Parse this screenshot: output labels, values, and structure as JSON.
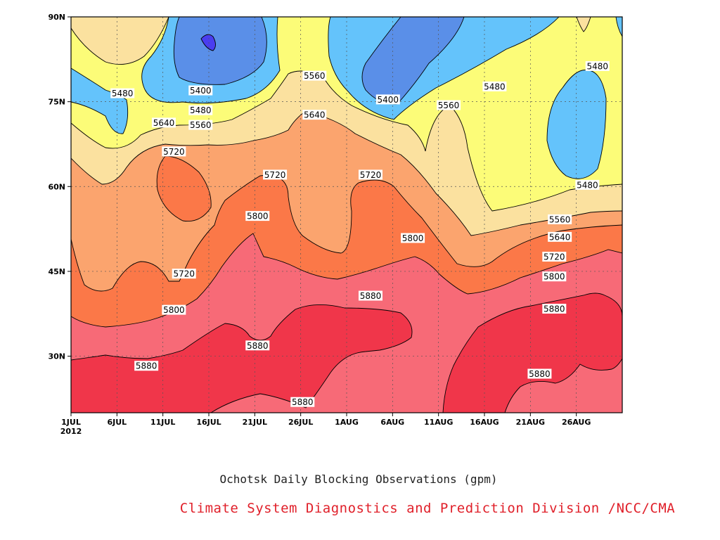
{
  "chart_data": {
    "type": "heatmap",
    "title": "Ochotsk Daily Blocking Observations (gpm)",
    "credit": "Climate System Diagnostics and Prediction Division /NCC/CMA",
    "x_tick_labels": [
      "1JUL",
      "6JUL",
      "11JUL",
      "16JUL",
      "21JUL",
      "26JUL",
      "1AUG",
      "6AUG",
      "11AUG",
      "16AUG",
      "21AUG",
      "26AUG"
    ],
    "x_year_label": "2012",
    "x_range_days": [
      0,
      60
    ],
    "y_tick_labels": [
      "30N",
      "45N",
      "60N",
      "75N",
      "90N"
    ],
    "y_ticks": [
      30,
      45,
      60,
      75,
      90
    ],
    "y_range": [
      20,
      90
    ],
    "grid": true,
    "contour_levels": [
      5320,
      5400,
      5480,
      5560,
      5640,
      5720,
      5800,
      5880
    ],
    "fill_colors": {
      "below_5320": "#4a3df0",
      "5320_5400": "#5a8fe8",
      "5400_5480": "#64c3fb",
      "5480_5560": "#fcfc78",
      "5560_5640": "#fbe19f",
      "5640_5720": "#fba46e",
      "5720_5800": "#fb7848",
      "5800_5880": "#f76a77",
      "above_5880": "#f0364a"
    },
    "contour_labels": [
      {
        "text": "5480",
        "day": 5.6,
        "lat": 76.5
      },
      {
        "text": "5400",
        "day": 14.1,
        "lat": 77.0
      },
      {
        "text": "5480",
        "day": 14.1,
        "lat": 73.5
      },
      {
        "text": "5560",
        "day": 14.1,
        "lat": 70.9
      },
      {
        "text": "5640",
        "day": 10.1,
        "lat": 71.3
      },
      {
        "text": "5720",
        "day": 11.2,
        "lat": 66.2
      },
      {
        "text": "5560",
        "day": 26.5,
        "lat": 79.6
      },
      {
        "text": "5640",
        "day": 26.5,
        "lat": 72.7
      },
      {
        "text": "5720",
        "day": 22.2,
        "lat": 62.1
      },
      {
        "text": "5800",
        "day": 20.3,
        "lat": 54.8
      },
      {
        "text": "5400",
        "day": 34.5,
        "lat": 75.4
      },
      {
        "text": "5560",
        "day": 41.1,
        "lat": 74.4
      },
      {
        "text": "5480",
        "day": 46.1,
        "lat": 77.7
      },
      {
        "text": "5720",
        "day": 32.6,
        "lat": 62.1
      },
      {
        "text": "5800",
        "day": 37.2,
        "lat": 50.9
      },
      {
        "text": "5880",
        "day": 32.6,
        "lat": 40.7
      },
      {
        "text": "5720",
        "day": 12.3,
        "lat": 44.6
      },
      {
        "text": "5800",
        "day": 11.2,
        "lat": 38.2
      },
      {
        "text": "5880",
        "day": 20.3,
        "lat": 31.9
      },
      {
        "text": "5880",
        "day": 8.2,
        "lat": 28.3
      },
      {
        "text": "5880",
        "day": 25.2,
        "lat": 21.9
      },
      {
        "text": "5480",
        "day": 57.3,
        "lat": 81.3
      },
      {
        "text": "5480",
        "day": 56.2,
        "lat": 60.3
      },
      {
        "text": "5560",
        "day": 53.2,
        "lat": 54.2
      },
      {
        "text": "5640",
        "day": 53.2,
        "lat": 51.1
      },
      {
        "text": "5720",
        "day": 52.6,
        "lat": 47.6
      },
      {
        "text": "5800",
        "day": 52.6,
        "lat": 44.1
      },
      {
        "text": "5880",
        "day": 52.6,
        "lat": 38.4
      },
      {
        "text": "5880",
        "day": 51.0,
        "lat": 26.9
      }
    ]
  }
}
